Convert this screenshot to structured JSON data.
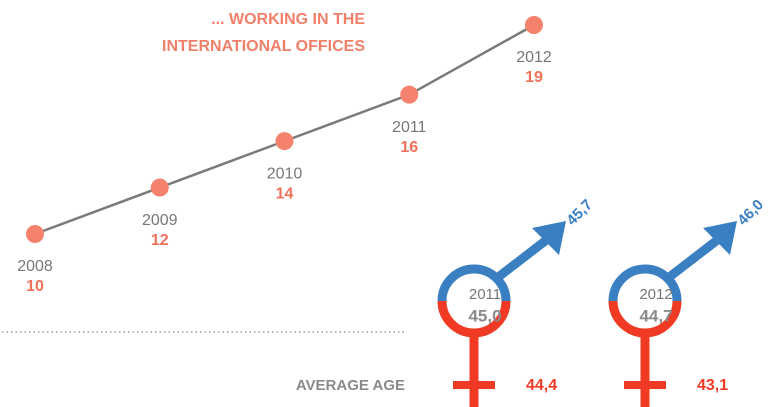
{
  "chart_data": {
    "type": "line",
    "title": [
      "... WORKING IN THE",
      "INTERNATIONAL OFFICES"
    ],
    "x": [
      2008,
      2009,
      2010,
      2011,
      2012
    ],
    "values": [
      10,
      12,
      14,
      16,
      19
    ],
    "line_color": "#7a7a7a",
    "marker_color": "#f4826d",
    "label_color": "#f0705a"
  },
  "average_age": {
    "label": "AVERAGE AGE",
    "items": [
      {
        "year": "2011",
        "average": "45,0",
        "male": "45,7",
        "female": "44,4"
      },
      {
        "year": "2012",
        "average": "44,7",
        "male": "46,0",
        "female": "43,1"
      }
    ],
    "male_color": "#3a7fc1",
    "female_color": "#f03a24"
  }
}
